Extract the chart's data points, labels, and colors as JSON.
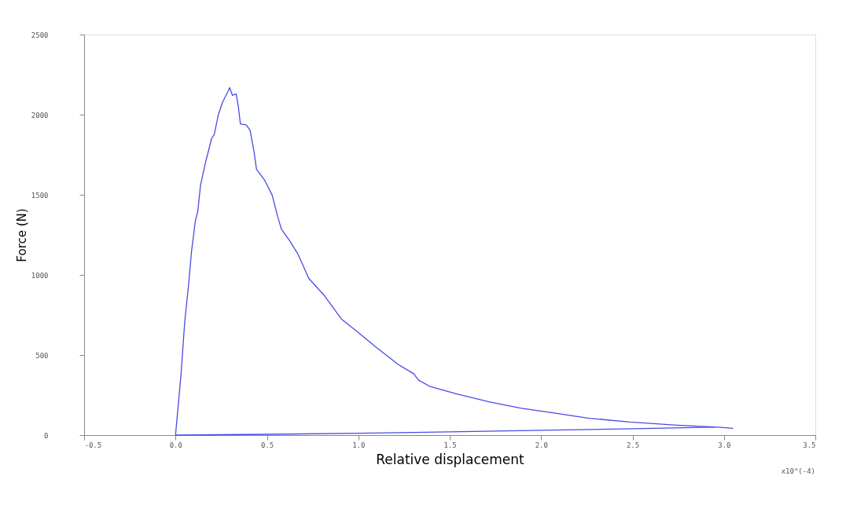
{
  "chart_data": {
    "type": "line",
    "xlabel": "Relative displacement",
    "ylabel": "Force (N)",
    "annotations": [
      "x10^(-4)"
    ],
    "xlim": [
      -0.5,
      3.5
    ],
    "xticks": [
      {
        "value": -0.5,
        "label": "-0.5"
      },
      {
        "value": 0,
        "label": "0.0"
      },
      {
        "value": 0.5,
        "label": "0.5"
      },
      {
        "value": 1,
        "label": "1.0"
      },
      {
        "value": 1.5,
        "label": "1.5"
      },
      {
        "value": 2,
        "label": "2.0"
      },
      {
        "value": 2.5,
        "label": "2.5"
      },
      {
        "value": 3,
        "label": "3.0"
      },
      {
        "value": 3.5,
        "label": "3.5"
      }
    ],
    "ylim": [
      0,
      2500
    ],
    "yticks": [
      0,
      500,
      1000,
      1500,
      2000,
      2500
    ],
    "grid": false,
    "legend": false,
    "marker": "none",
    "line_style": "solid",
    "series": [
      {
        "color": "#4a4ae6",
        "x": [
          0.0,
          0.03,
          0.05,
          0.072,
          0.087,
          0.108,
          0.122,
          0.137,
          0.165,
          0.198,
          0.212,
          0.234,
          0.258,
          0.287,
          0.296,
          0.311,
          0.332,
          0.344,
          0.355,
          0.386,
          0.408,
          0.429,
          0.443,
          0.486,
          0.529,
          0.558,
          0.579,
          0.629,
          0.672,
          0.729,
          0.815,
          0.909,
          0.995,
          1.098,
          1.218,
          1.303,
          1.329,
          1.389,
          1.543,
          1.715,
          1.886,
          2.057,
          2.263,
          2.486,
          2.743,
          2.966,
          3.051
        ],
        "values": [
          0,
          378,
          702,
          945,
          1140,
          1334,
          1399,
          1561,
          1707,
          1853,
          1877,
          1999,
          2080,
          2145,
          2169,
          2121,
          2129,
          2048,
          1942,
          1937,
          1902,
          1772,
          1659,
          1594,
          1497,
          1367,
          1286,
          1205,
          1124,
          978,
          870,
          723,
          645,
          548,
          441,
          383,
          344,
          305,
          256,
          208,
          169,
          140,
          105,
          81,
          62,
          50,
          42
        ]
      },
      {
        "color": "#4a4ae6",
        "x": [
          0.0,
          0.5,
          1.0,
          1.5,
          2.0,
          2.5,
          2.95
        ],
        "values": [
          0,
          5,
          12,
          20,
          30,
          40,
          50
        ]
      }
    ]
  }
}
